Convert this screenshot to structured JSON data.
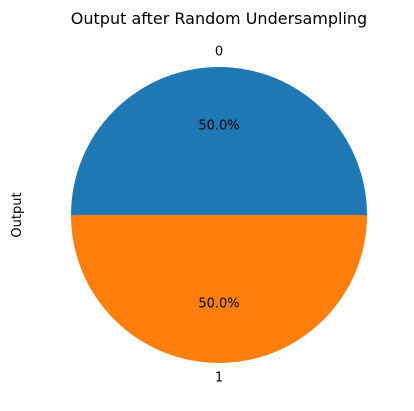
{
  "chart_data": {
    "type": "pie",
    "title": "Output after Random Undersampling",
    "ylabel": "Output",
    "xlabel": "",
    "categories": [
      "0",
      "1"
    ],
    "values": [
      50,
      50
    ],
    "percent_labels": [
      "50.0%",
      "50.0%"
    ],
    "colors": [
      "#1f77b4",
      "#ff7f0e"
    ],
    "start_angle_deg": 0,
    "direction": "counterclockwise",
    "legend": "none"
  }
}
